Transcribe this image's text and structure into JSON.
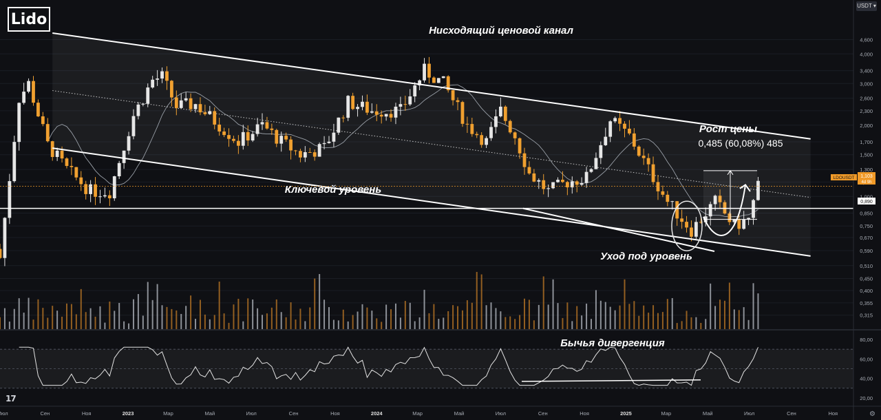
{
  "logo": {
    "text": "Lido"
  },
  "currency": {
    "label": "USDT ▾"
  },
  "tradingview_mark": "17",
  "annotations": {
    "channel": "Нисходящий ценовой канал",
    "key_level": "Ключевой уровень",
    "breakdown": "Уход под уровень",
    "growth_title": "Рост цены",
    "growth_value": "0,485 (60,08%) 485",
    "divergence": "Бычья дивергенция"
  },
  "price_tag": {
    "symbol": "LDOUSDT",
    "value": "1,103",
    "sub": "4d 9h"
  },
  "level_tag": {
    "value": "0,890"
  },
  "colors": {
    "background": "#0f1014",
    "bull": "#e6e6e6",
    "bear": "#f0a030",
    "grid": "#1e2128",
    "line": "#ffffff",
    "tag_orange": "#f09a28"
  },
  "chart_data": {
    "type": "candlestick",
    "pair": "LDOUSDT",
    "timeframe": "weekly",
    "scale": "log",
    "price_axis": [
      "4,600",
      "4,000",
      "3,400",
      "3,000",
      "2,600",
      "2,300",
      "2,000",
      "1,700",
      "1,500",
      "1,300",
      "1,150",
      "1,000",
      "0,850",
      "0,750",
      "0,670",
      "0,590",
      "0,510",
      "0,450",
      "0,400",
      "0,355",
      "0,315"
    ],
    "x_axis_labels": [
      "Июл",
      "Сен",
      "Ноя",
      "2023",
      "Мар",
      "Май",
      "Июл",
      "Сен",
      "Ноя",
      "2024",
      "Мар",
      "Май",
      "Июл",
      "Сен",
      "Ноя",
      "2025",
      "Мар",
      "Май",
      "Июл",
      "Сен",
      "Ноя"
    ],
    "key_level": 0.89,
    "last_price": 1.103,
    "rsi_axis": [
      "80,00",
      "60,00",
      "40,00",
      "20,00"
    ],
    "rsi_levels": [
      70,
      30
    ],
    "channel": {
      "upper": [
        [
          "2022-09-12",
          4.9
        ],
        [
          "2025-09-29",
          1.75
        ]
      ],
      "lower": [
        [
          "2022-09-12",
          1.6
        ],
        [
          "2025-09-29",
          0.56
        ]
      ]
    },
    "price_points": [
      [
        "2022-06-27",
        0.55
      ],
      [
        "2022-07-25",
        2.6
      ],
      [
        "2022-08-08",
        3.0
      ],
      [
        "2022-09-05",
        1.65
      ],
      [
        "2022-10-03",
        1.3
      ],
      [
        "2022-11-07",
        1.05
      ],
      [
        "2022-12-05",
        1.05
      ],
      [
        "2023-01-09",
        2.2
      ],
      [
        "2023-02-06",
        3.1
      ],
      [
        "2023-02-20",
        3.2
      ],
      [
        "2023-03-13",
        2.4
      ],
      [
        "2023-04-10",
        2.45
      ],
      [
        "2023-05-15",
        2.0
      ],
      [
        "2023-06-12",
        1.7
      ],
      [
        "2023-07-17",
        2.0
      ],
      [
        "2023-08-14",
        1.7
      ],
      [
        "2023-09-11",
        1.5
      ],
      [
        "2023-10-16",
        1.6
      ],
      [
        "2023-11-20",
        2.5
      ],
      [
        "2023-12-25",
        2.3
      ],
      [
        "2024-02-05",
        2.3
      ],
      [
        "2024-03-11",
        3.4
      ],
      [
        "2024-04-08",
        3.0
      ],
      [
        "2024-05-13",
        2.0
      ],
      [
        "2024-06-10",
        1.7
      ],
      [
        "2024-07-01",
        2.3
      ],
      [
        "2024-07-22",
        1.8
      ],
      [
        "2024-08-12",
        1.25
      ],
      [
        "2024-09-09",
        1.05
      ],
      [
        "2024-10-07",
        1.15
      ],
      [
        "2024-11-04",
        1.2
      ],
      [
        "2024-12-09",
        2.1
      ],
      [
        "2025-01-06",
        1.8
      ],
      [
        "2025-02-03",
        1.3
      ],
      [
        "2025-03-03",
        0.95
      ],
      [
        "2025-04-07",
        0.72
      ],
      [
        "2025-05-12",
        0.95
      ],
      [
        "2025-06-09",
        0.75
      ],
      [
        "2025-06-30",
        0.8
      ],
      [
        "2025-07-14",
        1.103
      ]
    ],
    "growth_measure": {
      "from": 0.8,
      "to": 1.285,
      "change": 0.485,
      "percent": 60.08
    }
  }
}
